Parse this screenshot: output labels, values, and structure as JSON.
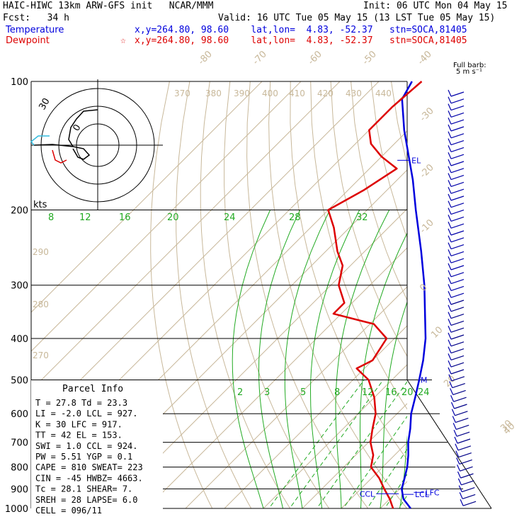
{
  "header": {
    "title": "HAIC-HIWC 13km ARW-GFS init   NCAR/MMM",
    "init": "Init: 06 UTC Mon 04 May 15",
    "fcst_label": "Fcst:   34 h",
    "valid": "Valid: 16 UTC Tue 05 May 15 (13 LST Tue 05 May 15)",
    "temp_label": "Temperature",
    "temp_loc": "x,y=264.80, 98.60    lat,lon=  4.83, -52.37   stn=SOCA,81405",
    "dew_label": "Dewpoint",
    "dew_loc": "x,y=264.80, 98.60    lat,lon=  4.83, -52.37   stn=SOCA,81405",
    "dew_marker": "☆"
  },
  "colors": {
    "temperature": "#0000dd",
    "dewpoint": "#dd0000",
    "isotherm": "#c8b89a",
    "mixing": "#22aa22"
  },
  "chart_data": {
    "type": "line",
    "title": "",
    "ylabel": "",
    "pressure_levels": [
      "100",
      "200",
      "300",
      "400",
      "500",
      "600",
      "700",
      "800",
      "900",
      "1000"
    ],
    "isotherm_labels": [
      "-80",
      "-70",
      "-60",
      "-50",
      "-40",
      "-30",
      "-20",
      "-10",
      "0",
      "10",
      "20",
      "30",
      "40"
    ],
    "theta_labels": [
      "370",
      "380",
      "390",
      "400",
      "410",
      "420",
      "430",
      "440",
      "290",
      "280",
      "270"
    ],
    "mixing_ratio_upper_labels": [
      "8",
      "12",
      "16",
      "20",
      "24",
      "28",
      "32"
    ],
    "mixing_ratio_lower_labels": [
      "2",
      "3",
      "5",
      "8",
      "12",
      "16",
      "20",
      "24"
    ],
    "level_markers": [
      "EL",
      "M",
      "CCL",
      "LCL",
      "LFC"
    ],
    "barb_note": [
      "Full barb:",
      "5 m s⁻¹"
    ],
    "hodo_units": "kts",
    "hodo_rings": [
      "30",
      "0"
    ],
    "series": [
      {
        "name": "Temperature",
        "points": [
          [
            1000,
            27.8
          ],
          [
            950,
            23.5
          ],
          [
            900,
            20.5
          ],
          [
            850,
            18.5
          ],
          [
            800,
            16.3
          ],
          [
            750,
            13.5
          ],
          [
            700,
            10.2
          ],
          [
            650,
            7.2
          ],
          [
            600,
            3.6
          ],
          [
            550,
            0.5
          ],
          [
            500,
            -3.0
          ],
          [
            450,
            -7.0
          ],
          [
            400,
            -12.0
          ],
          [
            350,
            -18.5
          ],
          [
            300,
            -26.0
          ],
          [
            250,
            -35.5
          ],
          [
            200,
            -47.5
          ],
          [
            170,
            -56.0
          ],
          [
            150,
            -63.0
          ],
          [
            130,
            -71.0
          ],
          [
            110,
            -79.5
          ],
          [
            100,
            -81.5
          ]
        ]
      },
      {
        "name": "Dewpoint",
        "points": [
          [
            1000,
            23.3
          ],
          [
            950,
            20.0
          ],
          [
            900,
            16.0
          ],
          [
            850,
            12.0
          ],
          [
            800,
            7.0
          ],
          [
            750,
            4.5
          ],
          [
            700,
            0.5
          ],
          [
            650,
            -2.5
          ],
          [
            600,
            -5.5
          ],
          [
            550,
            -10.0
          ],
          [
            500,
            -16.0
          ],
          [
            470,
            -22.0
          ],
          [
            450,
            -20.0
          ],
          [
            400,
            -22.0
          ],
          [
            370,
            -29.0
          ],
          [
            350,
            -42.0
          ],
          [
            330,
            -42.0
          ],
          [
            300,
            -48.0
          ],
          [
            270,
            -52.0
          ],
          [
            250,
            -57.0
          ],
          [
            220,
            -64.0
          ],
          [
            200,
            -70.0
          ],
          [
            180,
            -66.0
          ],
          [
            160,
            -63.0
          ],
          [
            150,
            -70.0
          ],
          [
            140,
            -76.0
          ],
          [
            130,
            -80.0
          ],
          [
            115,
            -80.0
          ],
          [
            100,
            -79.0
          ]
        ]
      }
    ]
  },
  "parcel": {
    "title": "Parcel Info",
    "rows": [
      "T  =    27.8  Td =  23.3",
      "LI =    -2.0  LCL =  927.",
      "K  =      30  LFC =  917.",
      "TT =      42  EL =   153.",
      "SWI =    1.0  CCL =  924.",
      "PW =    5.51  YGP =   0.1",
      "CAPE =   810  SWEAT=  223",
      "CIN =    -45  HWBZ= 4663.",
      "Tc =    28.1  SHEAR=   7.",
      "SREH =    28  LAPSE=  6.0",
      "CELL = 096/11"
    ]
  }
}
